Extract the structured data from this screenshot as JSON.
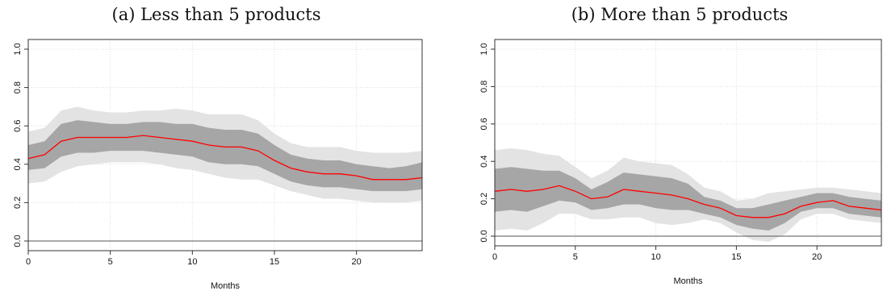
{
  "chart_data": [
    {
      "type": "area",
      "title": "(a) Less than 5 products",
      "xlabel": "Months",
      "ylabel": "",
      "xlim": [
        0,
        24
      ],
      "ylim": [
        0,
        1.0
      ],
      "xticks": [
        "0",
        "5",
        "10",
        "15",
        "20"
      ],
      "yticks": [
        "0.0",
        "0.2",
        "0.4",
        "0.6",
        "0.8",
        "1.0"
      ],
      "grid": true,
      "reference_line": 0,
      "colors": {
        "outer_band": "#e3e3e3",
        "inner_band": "#a6a6a6",
        "median": "#ff0000",
        "reference": "#555555"
      },
      "x": [
        0,
        1,
        2,
        3,
        4,
        5,
        6,
        7,
        8,
        9,
        10,
        11,
        12,
        13,
        14,
        15,
        16,
        17,
        18,
        19,
        20,
        21,
        22,
        23,
        24
      ],
      "series": [
        {
          "role": "outer_upper",
          "values": [
            0.57,
            0.59,
            0.68,
            0.7,
            0.68,
            0.67,
            0.67,
            0.68,
            0.68,
            0.69,
            0.68,
            0.66,
            0.66,
            0.66,
            0.63,
            0.56,
            0.51,
            0.49,
            0.49,
            0.49,
            0.47,
            0.46,
            0.46,
            0.46,
            0.47
          ]
        },
        {
          "role": "inner_upper",
          "values": [
            0.5,
            0.52,
            0.61,
            0.63,
            0.62,
            0.61,
            0.61,
            0.62,
            0.62,
            0.61,
            0.61,
            0.59,
            0.58,
            0.58,
            0.56,
            0.5,
            0.45,
            0.43,
            0.42,
            0.42,
            0.4,
            0.39,
            0.38,
            0.39,
            0.41
          ]
        },
        {
          "role": "median",
          "values": [
            0.43,
            0.45,
            0.52,
            0.54,
            0.54,
            0.54,
            0.54,
            0.55,
            0.54,
            0.53,
            0.52,
            0.5,
            0.49,
            0.49,
            0.47,
            0.42,
            0.38,
            0.36,
            0.35,
            0.35,
            0.34,
            0.32,
            0.32,
            0.32,
            0.33
          ]
        },
        {
          "role": "inner_lower",
          "values": [
            0.37,
            0.38,
            0.44,
            0.46,
            0.46,
            0.47,
            0.47,
            0.47,
            0.46,
            0.45,
            0.44,
            0.41,
            0.4,
            0.4,
            0.39,
            0.35,
            0.31,
            0.29,
            0.28,
            0.28,
            0.27,
            0.26,
            0.26,
            0.26,
            0.27
          ]
        },
        {
          "role": "outer_lower",
          "values": [
            0.3,
            0.31,
            0.36,
            0.39,
            0.4,
            0.41,
            0.41,
            0.41,
            0.4,
            0.38,
            0.37,
            0.35,
            0.33,
            0.32,
            0.32,
            0.29,
            0.26,
            0.24,
            0.22,
            0.22,
            0.21,
            0.2,
            0.2,
            0.2,
            0.21
          ]
        }
      ]
    },
    {
      "type": "area",
      "title": "(b) More than 5 products",
      "xlabel": "Months",
      "ylabel": "",
      "xlim": [
        0,
        24
      ],
      "ylim": [
        0,
        1.0
      ],
      "xticks": [
        "0",
        "5",
        "10",
        "15",
        "20"
      ],
      "yticks": [
        "0.0",
        "0.2",
        "0.4",
        "0.6",
        "0.8",
        "1.0"
      ],
      "grid": true,
      "reference_line": 0,
      "colors": {
        "outer_band": "#e3e3e3",
        "inner_band": "#a6a6a6",
        "median": "#ff0000",
        "reference": "#555555"
      },
      "x": [
        0,
        1,
        2,
        3,
        4,
        5,
        6,
        7,
        8,
        9,
        10,
        11,
        12,
        13,
        14,
        15,
        16,
        17,
        18,
        19,
        20,
        21,
        22,
        23,
        24
      ],
      "series": [
        {
          "role": "outer_upper",
          "values": [
            0.46,
            0.47,
            0.46,
            0.44,
            0.43,
            0.37,
            0.31,
            0.35,
            0.42,
            0.4,
            0.39,
            0.38,
            0.33,
            0.26,
            0.24,
            0.19,
            0.2,
            0.23,
            0.24,
            0.25,
            0.26,
            0.26,
            0.25,
            0.24,
            0.23
          ]
        },
        {
          "role": "inner_upper",
          "values": [
            0.36,
            0.37,
            0.36,
            0.35,
            0.35,
            0.31,
            0.25,
            0.29,
            0.34,
            0.33,
            0.32,
            0.31,
            0.28,
            0.21,
            0.19,
            0.15,
            0.15,
            0.17,
            0.19,
            0.21,
            0.23,
            0.23,
            0.21,
            0.2,
            0.19
          ]
        },
        {
          "role": "median",
          "values": [
            0.24,
            0.25,
            0.24,
            0.25,
            0.27,
            0.24,
            0.2,
            0.21,
            0.25,
            0.24,
            0.23,
            0.22,
            0.2,
            0.17,
            0.15,
            0.11,
            0.1,
            0.1,
            0.12,
            0.16,
            0.18,
            0.19,
            0.16,
            0.15,
            0.14
          ]
        },
        {
          "role": "inner_lower",
          "values": [
            0.13,
            0.14,
            0.13,
            0.16,
            0.19,
            0.18,
            0.14,
            0.15,
            0.17,
            0.17,
            0.15,
            0.14,
            0.14,
            0.12,
            0.1,
            0.06,
            0.04,
            0.03,
            0.07,
            0.13,
            0.15,
            0.15,
            0.12,
            0.11,
            0.1
          ]
        },
        {
          "role": "outer_lower",
          "values": [
            0.03,
            0.04,
            0.03,
            0.07,
            0.12,
            0.12,
            0.09,
            0.09,
            0.1,
            0.1,
            0.07,
            0.06,
            0.07,
            0.09,
            0.07,
            0.02,
            -0.02,
            -0.03,
            0.01,
            0.09,
            0.12,
            0.12,
            0.09,
            0.08,
            0.07
          ]
        }
      ]
    }
  ]
}
